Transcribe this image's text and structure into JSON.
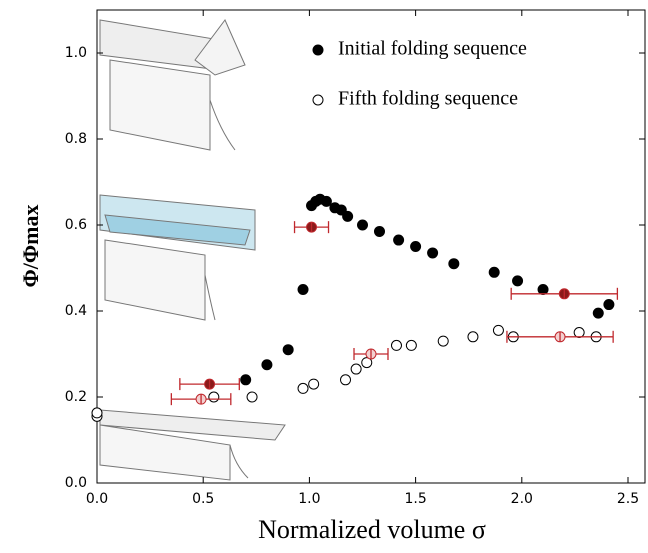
{
  "chart_data": {
    "type": "scatter",
    "xlabel": "Normalized volume σ",
    "ylabel": "Φ/Φmax",
    "xlim": [
      0,
      2.58
    ],
    "ylim": [
      0,
      1.1
    ],
    "xticks": [
      {
        "value": 0,
        "label": "0.0"
      },
      {
        "value": 0.5,
        "label": "0.5"
      },
      {
        "value": 1,
        "label": "1.0"
      },
      {
        "value": 1.5,
        "label": "1.5"
      },
      {
        "value": 2,
        "label": "2.0"
      },
      {
        "value": 2.5,
        "label": "2.5"
      }
    ],
    "yticks": [
      {
        "value": 0,
        "label": "0.0"
      },
      {
        "value": 0.2,
        "label": "0.2"
      },
      {
        "value": 0.4,
        "label": "0.4"
      },
      {
        "value": 0.6,
        "label": "0.6"
      },
      {
        "value": 0.8,
        "label": "0.8"
      },
      {
        "value": 1,
        "label": "1.0"
      }
    ],
    "legend": "upper right",
    "series": [
      {
        "name": "Initial folding sequence",
        "color": "#000000",
        "filled": true,
        "x": [
          0.7,
          0.8,
          0.9,
          0.97,
          1.01,
          1.03,
          1.05,
          1.08,
          1.12,
          1.15,
          1.18,
          1.25,
          1.33,
          1.42,
          1.5,
          1.58,
          1.68,
          1.87,
          1.98,
          2.1,
          2.36,
          2.41
        ],
        "values": [
          0.24,
          0.275,
          0.31,
          0.45,
          0.645,
          0.655,
          0.66,
          0.655,
          0.64,
          0.635,
          0.62,
          0.6,
          0.585,
          0.565,
          0.55,
          0.535,
          0.51,
          0.49,
          0.47,
          0.45,
          0.395,
          0.415
        ],
        "error_points": {
          "color": "#c0282d",
          "x": [
            0.53,
            1.01,
            2.2
          ],
          "values": [
            0.23,
            0.595,
            0.44
          ],
          "xerr": [
            0.14,
            0.08,
            0.25
          ]
        }
      },
      {
        "name": "Fifth folding sequence",
        "color": "#000000",
        "filled": false,
        "x": [
          0,
          0,
          0.55,
          0.73,
          0.97,
          1.02,
          1.17,
          1.22,
          1.27,
          1.41,
          1.48,
          1.63,
          1.77,
          1.89,
          1.96,
          2.27,
          2.35
        ],
        "values": [
          0.155,
          0.163,
          0.2,
          0.2,
          0.22,
          0.23,
          0.24,
          0.265,
          0.28,
          0.32,
          0.32,
          0.33,
          0.34,
          0.355,
          0.34,
          0.35,
          0.34
        ],
        "error_points": {
          "color": "#c0282d",
          "x": [
            0.49,
            1.29,
            2.18
          ],
          "values": [
            0.195,
            0.3,
            0.34
          ],
          "xerr": [
            0.14,
            0.08,
            0.25
          ]
        }
      }
    ]
  }
}
